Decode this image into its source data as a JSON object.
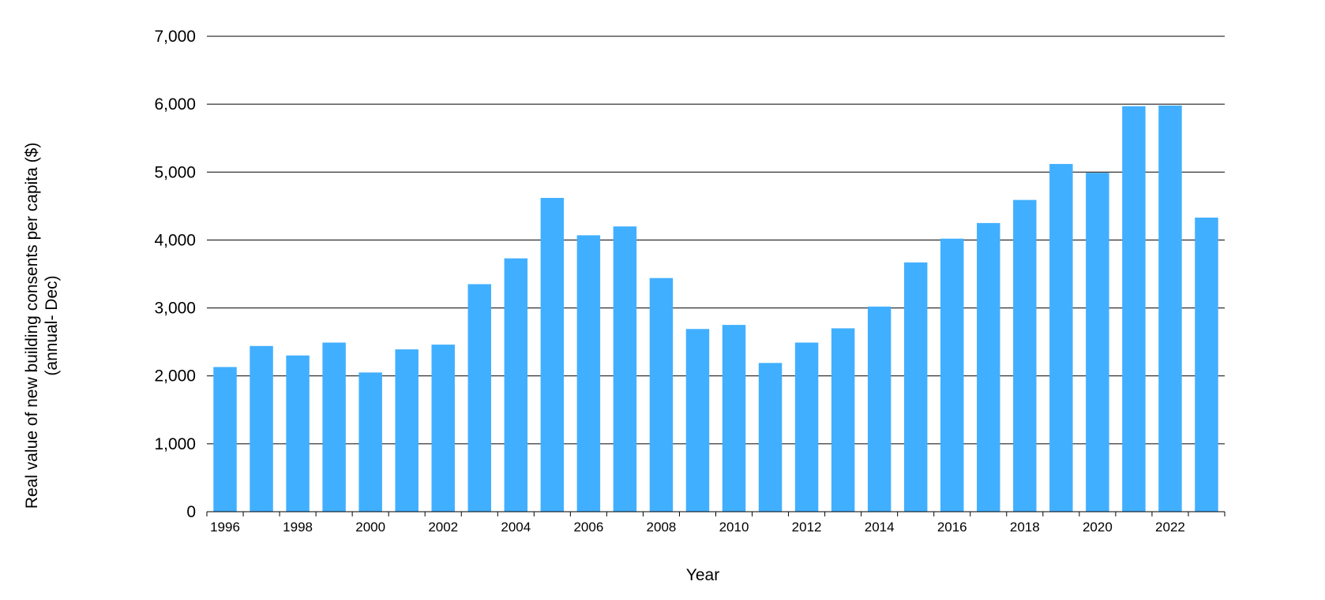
{
  "chart_data": {
    "type": "bar",
    "categories": [
      "1996",
      "1997",
      "1998",
      "1999",
      "2000",
      "2001",
      "2002",
      "2003",
      "2004",
      "2005",
      "2006",
      "2007",
      "2008",
      "2009",
      "2010",
      "2011",
      "2012",
      "2013",
      "2014",
      "2015",
      "2016",
      "2017",
      "2018",
      "2019",
      "2020",
      "2021",
      "2022",
      "2023"
    ],
    "values": [
      2130,
      2440,
      2300,
      2490,
      2050,
      2390,
      2460,
      3350,
      3730,
      4620,
      4070,
      4200,
      3440,
      2690,
      2750,
      2190,
      2490,
      2700,
      3020,
      3670,
      4020,
      4250,
      4590,
      5120,
      4990,
      5970,
      5980,
      4330
    ],
    "x_tick_labels": [
      "1996",
      "1998",
      "2000",
      "2002",
      "2004",
      "2006",
      "2008",
      "2010",
      "2012",
      "2014",
      "2016",
      "2018",
      "2020",
      "2022"
    ],
    "y_ticks": [
      0,
      1000,
      2000,
      3000,
      4000,
      5000,
      6000,
      7000
    ],
    "y_tick_labels": [
      "0",
      "1,000",
      "2,000",
      "3,000",
      "4,000",
      "5,000",
      "6,000",
      "7,000"
    ],
    "ylim": [
      0,
      7000
    ],
    "xlabel": "Year",
    "ylabel": "Real value of new building  consents per capita ($)",
    "ylabel_line2": "(annual- Dec)",
    "grid": "horizontal",
    "bar_color": "#41AFFF",
    "grid_color": "#000000"
  }
}
